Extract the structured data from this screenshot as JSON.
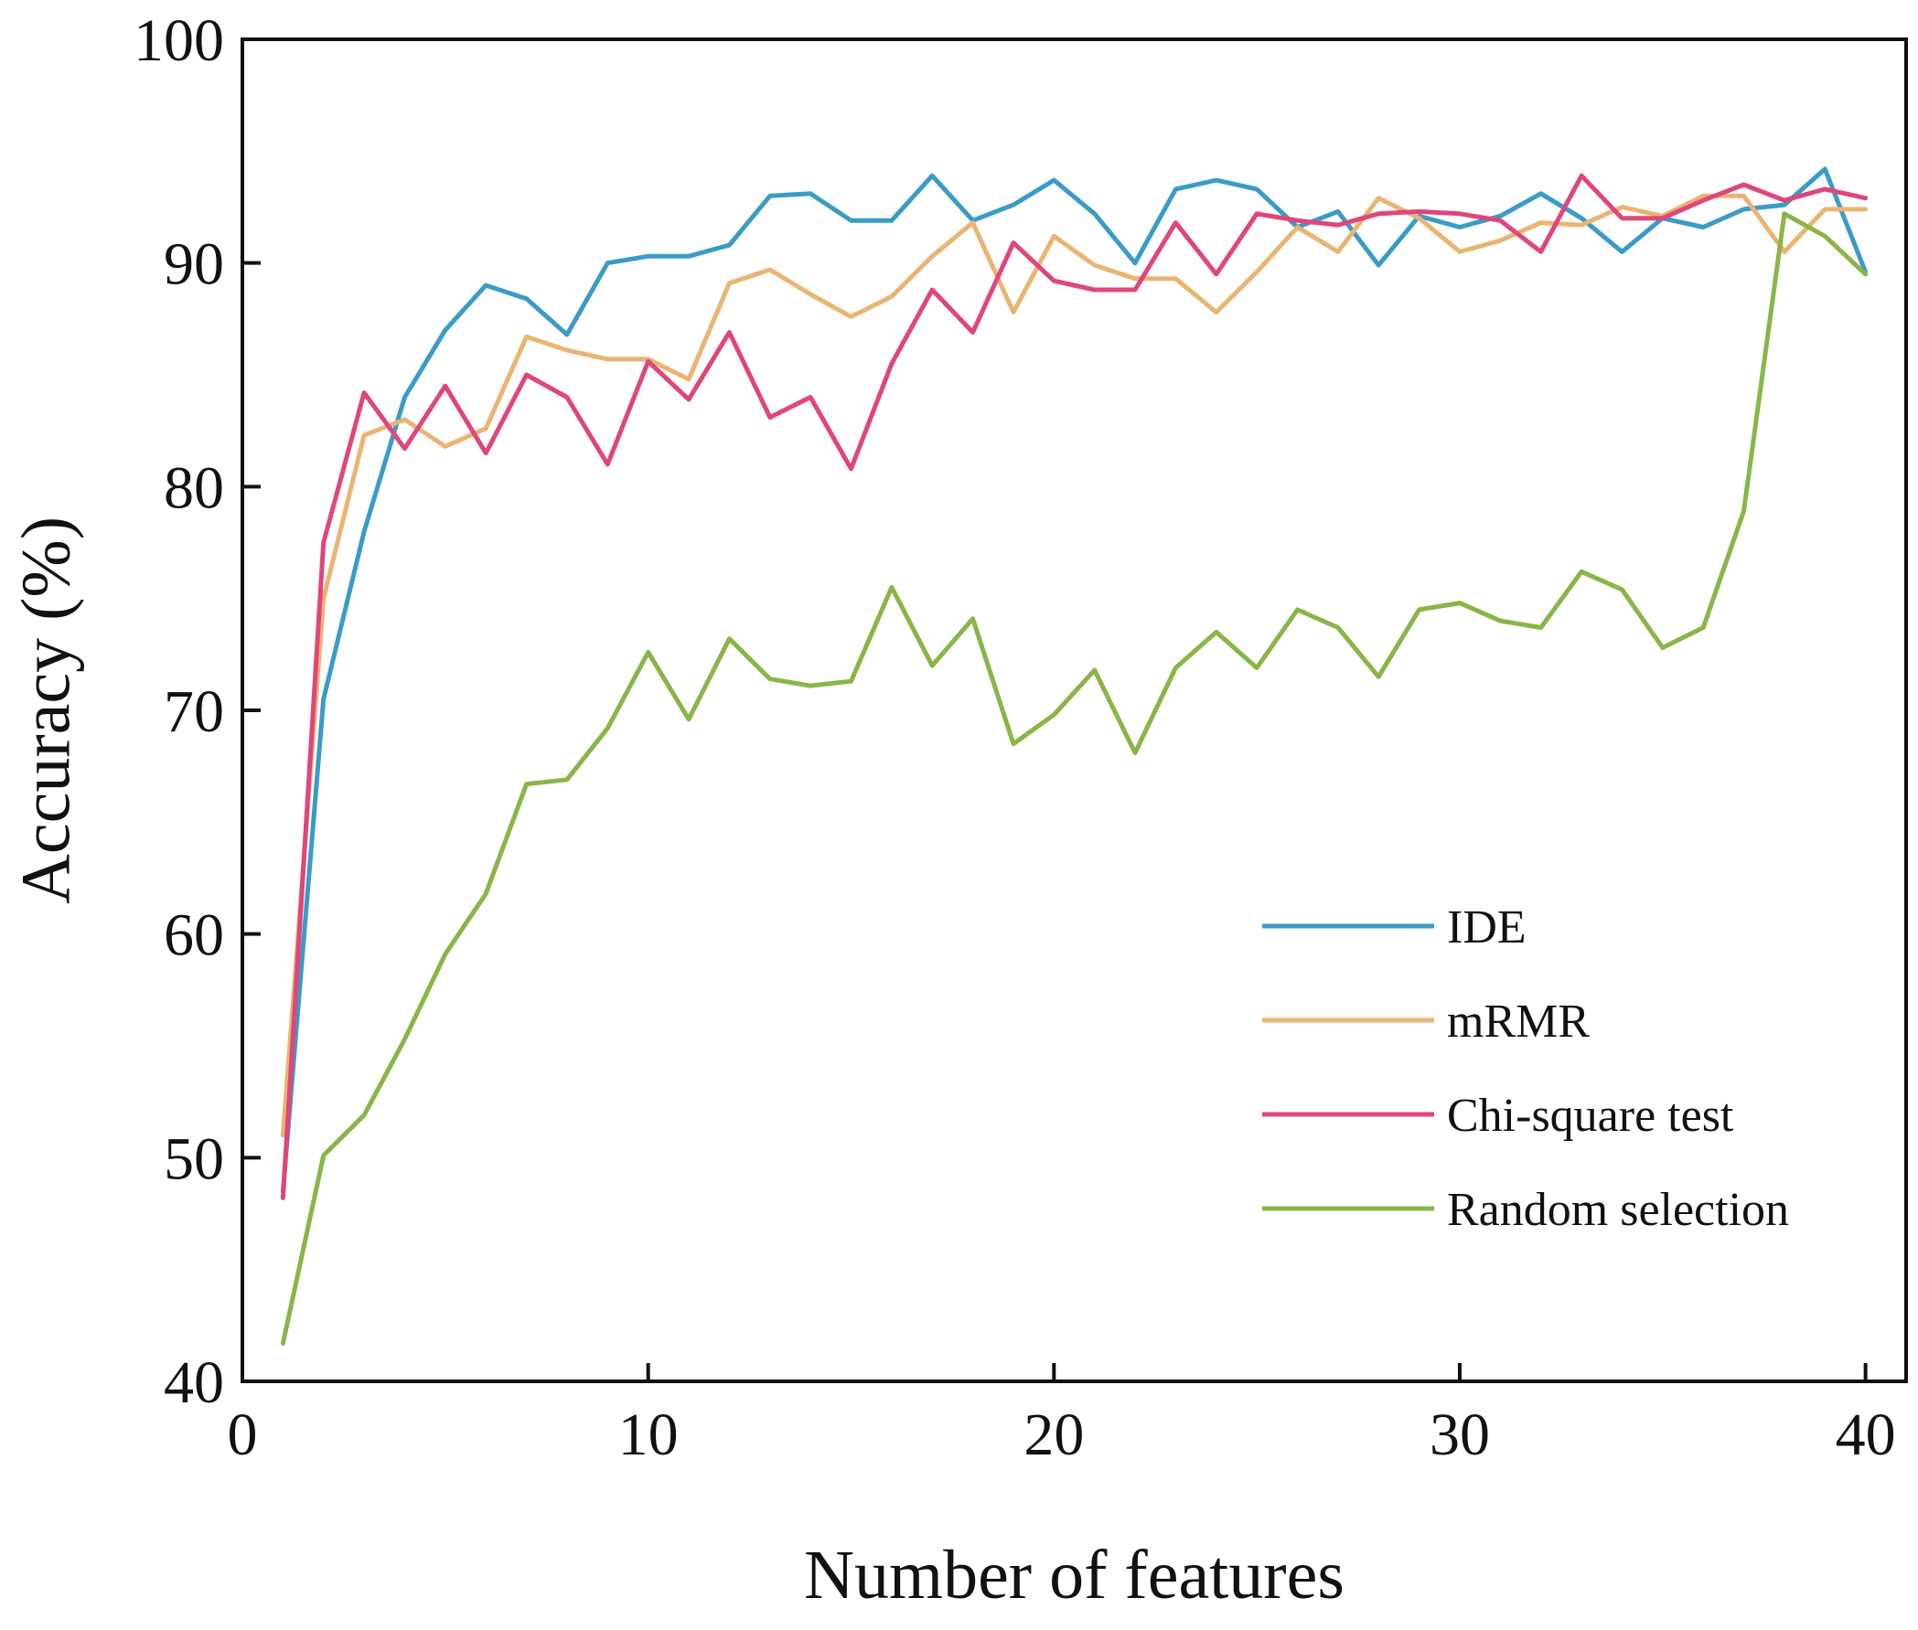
{
  "chart_data": {
    "type": "line",
    "title": "",
    "xlabel": "Number of features",
    "ylabel": "Accuracy (%)",
    "xlim": [
      0,
      41
    ],
    "ylim": [
      40,
      100
    ],
    "xticks": [
      0,
      10,
      20,
      30,
      40
    ],
    "yticks": [
      40,
      50,
      60,
      70,
      80,
      90,
      100
    ],
    "grid": false,
    "legend_position": "lower-right",
    "x": [
      1,
      2,
      3,
      4,
      5,
      6,
      7,
      8,
      9,
      10,
      11,
      12,
      13,
      14,
      15,
      16,
      17,
      18,
      19,
      20,
      21,
      22,
      23,
      24,
      25,
      26,
      27,
      28,
      29,
      30,
      31,
      32,
      33,
      34,
      35,
      36,
      37,
      38,
      39,
      40
    ],
    "series": [
      {
        "name": "IDE",
        "color": "#3a9cc6",
        "values": [
          48.5,
          70.5,
          78,
          84,
          87,
          89,
          88.4,
          86.8,
          90,
          90.3,
          90.3,
          90.8,
          93,
          93.1,
          91.9,
          91.9,
          93.9,
          91.9,
          92.6,
          93.7,
          92.2,
          90,
          93.3,
          93.7,
          93.3,
          91.6,
          92.3,
          89.9,
          92.1,
          91.6,
          92.1,
          93.1,
          92,
          90.5,
          92,
          91.6,
          92.4,
          92.6,
          94.2,
          89.6
        ]
      },
      {
        "name": "mRMR",
        "color": "#eab472",
        "values": [
          51,
          75,
          82.3,
          83,
          81.8,
          82.6,
          86.7,
          86.1,
          85.7,
          85.7,
          84.8,
          89.1,
          89.7,
          88.6,
          87.6,
          88.5,
          90.3,
          91.8,
          87.8,
          91.2,
          89.9,
          89.3,
          89.3,
          87.8,
          89.6,
          91.6,
          90.5,
          92.9,
          92,
          90.5,
          91,
          91.8,
          91.7,
          92.5,
          92.1,
          93,
          93,
          90.5,
          92.4,
          92.4
        ]
      },
      {
        "name": "Chi-square test",
        "color": "#e0457b",
        "values": [
          48.2,
          77.5,
          84.2,
          81.7,
          84.5,
          81.5,
          85,
          84,
          81,
          85.6,
          83.9,
          86.9,
          83.1,
          84,
          80.8,
          85.5,
          88.8,
          86.9,
          90.9,
          89.2,
          88.8,
          88.8,
          91.8,
          89.5,
          92.2,
          91.9,
          91.7,
          92.2,
          92.3,
          92.2,
          91.9,
          90.5,
          93.9,
          92,
          92,
          92.8,
          93.5,
          92.8,
          93.3,
          92.9
        ]
      },
      {
        "name": "Random selection",
        "color": "#8ab547",
        "values": [
          41.7,
          50.1,
          51.9,
          55.3,
          59.1,
          61.8,
          66.7,
          66.9,
          69.2,
          72.6,
          69.6,
          73.2,
          71.4,
          71.1,
          71.3,
          75.5,
          72,
          74.1,
          68.5,
          69.8,
          71.8,
          68.1,
          71.9,
          73.5,
          71.9,
          74.5,
          73.7,
          71.5,
          74.5,
          74.8,
          74,
          73.7,
          76.2,
          75.4,
          72.8,
          73.7,
          78.9,
          92.2,
          91.2,
          89.5
        ]
      }
    ]
  }
}
